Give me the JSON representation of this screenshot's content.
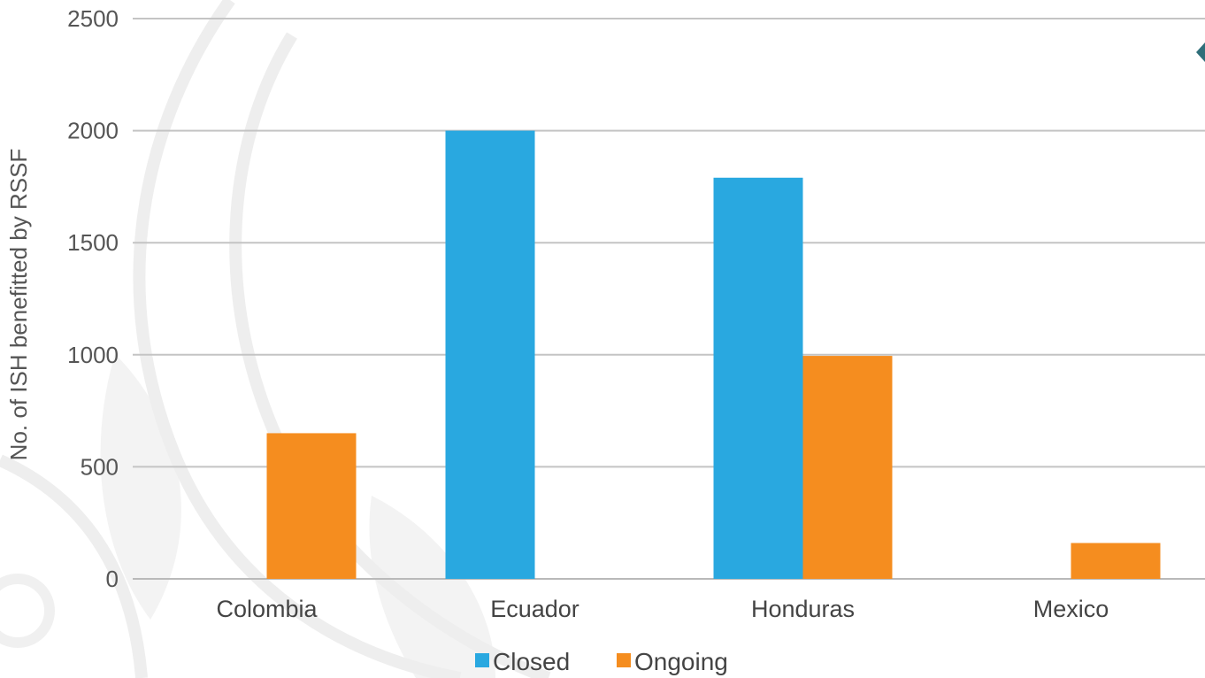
{
  "chart_data": {
    "type": "bar",
    "title": "",
    "xlabel": "",
    "ylabel": "No. of ISH benefitted by RSSF",
    "categories": [
      "Colombia",
      "Ecuador",
      "Honduras",
      "Mexico"
    ],
    "series": [
      {
        "name": "Closed",
        "values": [
          0,
          2000,
          1790,
          0
        ],
        "color": "#29a8e0"
      },
      {
        "name": "Ongoing",
        "values": [
          650,
          0,
          995,
          160
        ],
        "color": "#f58d1f"
      }
    ],
    "ylim": [
      0,
      2500
    ],
    "yticks": [
      0,
      500,
      1000,
      1500,
      2000,
      2500
    ],
    "grid": true,
    "legend_position": "bottom"
  }
}
